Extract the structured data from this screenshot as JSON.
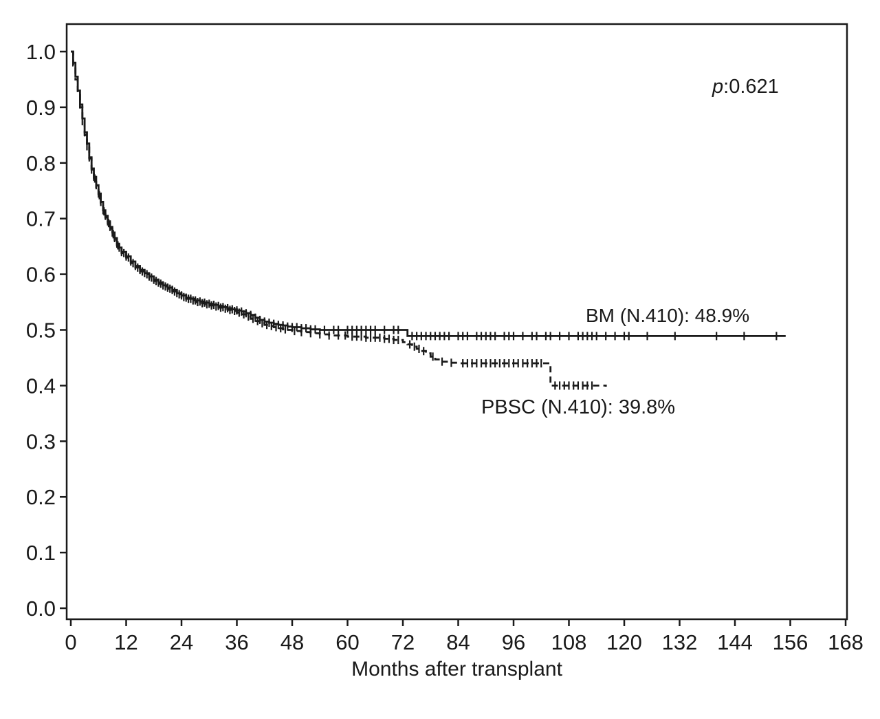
{
  "annotations": {
    "p_symbol": "p",
    "p_value": ":0.621",
    "bm_label": "BM (N.410): 48.9%",
    "pbsc_label": "PBSC (N.410): 39.8%"
  },
  "chart_data": {
    "type": "line",
    "subtype": "kaplan-meier-step",
    "title": "",
    "xlabel": "Months after transplant",
    "ylabel": "",
    "xlim": [
      0,
      168
    ],
    "ylim": [
      0.0,
      1.0
    ],
    "grid": false,
    "legend_position": "inline-labels",
    "ink_color": "#1a1a1a",
    "x_ticks": [
      0,
      12,
      24,
      36,
      48,
      60,
      72,
      84,
      96,
      108,
      120,
      132,
      144,
      156,
      168
    ],
    "x_tick_labels": [
      "0",
      "12",
      "24",
      "36",
      "48",
      "60",
      "72",
      "84",
      "96",
      "108",
      "120",
      "132",
      "144",
      "156",
      "168"
    ],
    "y_ticks": [
      0.0,
      0.1,
      0.2,
      0.3,
      0.4,
      0.5,
      0.6,
      0.7,
      0.8,
      0.9,
      1.0
    ],
    "y_tick_labels": [
      "0.0",
      "0.1",
      "0.2",
      "0.3",
      "0.4",
      "0.5",
      "0.6",
      "0.7",
      "0.8",
      "0.9",
      "1.0"
    ],
    "p_value": 0.621,
    "series": [
      {
        "name": "BM",
        "n": 410,
        "final_survival": 0.489,
        "final_pct": "48.9%",
        "line_style": "solid",
        "color": "#1a1a1a",
        "points": [
          [
            0,
            1.0
          ],
          [
            0.5,
            0.98
          ],
          [
            1,
            0.955
          ],
          [
            1.5,
            0.93
          ],
          [
            2,
            0.905
          ],
          [
            2.5,
            0.88
          ],
          [
            3,
            0.855
          ],
          [
            3.5,
            0.835
          ],
          [
            4,
            0.81
          ],
          [
            4.5,
            0.79
          ],
          [
            5,
            0.775
          ],
          [
            5.5,
            0.76
          ],
          [
            6,
            0.745
          ],
          [
            6.5,
            0.73
          ],
          [
            7,
            0.715
          ],
          [
            7.5,
            0.705
          ],
          [
            8,
            0.695
          ],
          [
            8.5,
            0.685
          ],
          [
            9,
            0.675
          ],
          [
            9.5,
            0.665
          ],
          [
            10,
            0.655
          ],
          [
            10.5,
            0.648
          ],
          [
            11,
            0.64
          ],
          [
            12,
            0.632
          ],
          [
            13,
            0.623
          ],
          [
            14,
            0.615
          ],
          [
            15,
            0.608
          ],
          [
            16,
            0.602
          ],
          [
            17,
            0.596
          ],
          [
            18,
            0.59
          ],
          [
            19,
            0.585
          ],
          [
            20,
            0.58
          ],
          [
            21,
            0.576
          ],
          [
            22,
            0.572
          ],
          [
            23,
            0.566
          ],
          [
            24,
            0.562
          ],
          [
            25,
            0.558
          ],
          [
            26,
            0.556
          ],
          [
            27,
            0.553
          ],
          [
            28,
            0.551
          ],
          [
            29,
            0.549
          ],
          [
            30,
            0.547
          ],
          [
            31,
            0.545
          ],
          [
            32,
            0.543
          ],
          [
            33,
            0.541
          ],
          [
            34,
            0.539
          ],
          [
            35,
            0.537
          ],
          [
            36,
            0.535
          ],
          [
            37,
            0.533
          ],
          [
            38,
            0.53
          ],
          [
            39,
            0.527
          ],
          [
            40,
            0.522
          ],
          [
            41,
            0.518
          ],
          [
            42,
            0.515
          ],
          [
            43,
            0.513
          ],
          [
            44,
            0.511
          ],
          [
            45,
            0.509
          ],
          [
            46,
            0.508
          ],
          [
            47,
            0.506
          ],
          [
            48,
            0.505
          ],
          [
            50,
            0.503
          ],
          [
            52,
            0.501
          ],
          [
            54,
            0.5
          ],
          [
            72,
            0.5
          ],
          [
            73,
            0.489
          ],
          [
            155,
            0.489
          ]
        ],
        "censor_times": [
          2,
          3,
          4,
          5,
          5.5,
          6,
          6.5,
          7,
          7.5,
          8,
          8.5,
          9,
          9.5,
          10,
          10.5,
          11,
          12,
          13,
          14,
          15,
          16,
          17,
          18,
          19,
          20,
          21,
          22,
          23,
          24,
          25,
          26,
          27,
          28,
          29,
          30,
          31,
          32,
          33,
          34,
          35,
          36,
          37,
          38,
          39,
          40,
          41,
          42,
          43,
          44,
          45,
          46,
          47,
          48,
          49,
          50,
          51,
          52,
          53,
          55,
          57,
          58,
          60,
          61,
          62,
          63,
          64,
          65,
          66,
          68,
          70,
          71,
          74,
          75,
          76,
          77,
          78,
          79,
          80,
          81,
          82,
          84,
          85,
          86,
          88,
          89,
          90,
          91,
          92,
          94,
          95,
          96,
          98,
          100,
          101,
          103,
          104,
          106,
          108,
          110,
          111,
          112,
          113,
          114,
          116,
          118,
          120,
          121,
          125,
          131,
          140,
          146,
          153
        ]
      },
      {
        "name": "PBSC",
        "n": 410,
        "final_survival": 0.398,
        "final_pct": "39.8%",
        "line_style": "dashed",
        "color": "#1a1a1a",
        "points": [
          [
            0,
            1.0
          ],
          [
            0.5,
            0.975
          ],
          [
            1,
            0.95
          ],
          [
            1.5,
            0.925
          ],
          [
            2,
            0.9
          ],
          [
            2.5,
            0.875
          ],
          [
            3,
            0.85
          ],
          [
            3.5,
            0.83
          ],
          [
            4,
            0.808
          ],
          [
            4.5,
            0.788
          ],
          [
            5,
            0.772
          ],
          [
            5.5,
            0.757
          ],
          [
            6,
            0.742
          ],
          [
            6.5,
            0.728
          ],
          [
            7,
            0.713
          ],
          [
            7.5,
            0.702
          ],
          [
            8,
            0.692
          ],
          [
            8.5,
            0.682
          ],
          [
            9,
            0.672
          ],
          [
            9.5,
            0.662
          ],
          [
            10,
            0.652
          ],
          [
            10.5,
            0.645
          ],
          [
            11,
            0.638
          ],
          [
            12,
            0.63
          ],
          [
            13,
            0.62
          ],
          [
            14,
            0.612
          ],
          [
            15,
            0.605
          ],
          [
            16,
            0.6
          ],
          [
            17,
            0.594
          ],
          [
            18,
            0.588
          ],
          [
            19,
            0.583
          ],
          [
            20,
            0.578
          ],
          [
            21,
            0.574
          ],
          [
            22,
            0.569
          ],
          [
            23,
            0.564
          ],
          [
            24,
            0.559
          ],
          [
            25,
            0.556
          ],
          [
            26,
            0.553
          ],
          [
            27,
            0.55
          ],
          [
            28,
            0.548
          ],
          [
            29,
            0.546
          ],
          [
            30,
            0.544
          ],
          [
            31,
            0.542
          ],
          [
            32,
            0.54
          ],
          [
            33,
            0.538
          ],
          [
            34,
            0.536
          ],
          [
            35,
            0.534
          ],
          [
            36,
            0.531
          ],
          [
            37,
            0.528
          ],
          [
            38,
            0.524
          ],
          [
            39,
            0.52
          ],
          [
            40,
            0.516
          ],
          [
            41,
            0.512
          ],
          [
            42,
            0.509
          ],
          [
            43,
            0.507
          ],
          [
            44,
            0.505
          ],
          [
            45,
            0.503
          ],
          [
            46,
            0.501
          ],
          [
            47,
            0.5
          ],
          [
            48,
            0.498
          ],
          [
            50,
            0.496
          ],
          [
            52,
            0.494
          ],
          [
            54,
            0.492
          ],
          [
            56,
            0.49
          ],
          [
            60,
            0.488
          ],
          [
            64,
            0.486
          ],
          [
            68,
            0.484
          ],
          [
            70,
            0.482
          ],
          [
            72,
            0.478
          ],
          [
            73,
            0.474
          ],
          [
            74,
            0.47
          ],
          [
            75,
            0.466
          ],
          [
            76,
            0.462
          ],
          [
            77,
            0.458
          ],
          [
            78,
            0.452
          ],
          [
            79,
            0.447
          ],
          [
            80,
            0.443
          ],
          [
            82,
            0.441
          ],
          [
            84,
            0.44
          ],
          [
            103,
            0.44
          ],
          [
            104,
            0.4
          ],
          [
            116,
            0.398
          ]
        ],
        "censor_times": [
          2.5,
          3.5,
          4.5,
          5.2,
          6.2,
          7.2,
          8.2,
          9.2,
          10.2,
          11.5,
          12.5,
          13.5,
          14.5,
          15.5,
          16.5,
          17.5,
          18.5,
          19.5,
          20.5,
          21.5,
          22.5,
          23.5,
          24.5,
          25.5,
          26.5,
          27.5,
          28.5,
          29.5,
          30.5,
          31.5,
          32.5,
          33.5,
          34.5,
          35.5,
          36.5,
          37.5,
          38.5,
          39.5,
          40.5,
          41.5,
          42.5,
          43.5,
          44.5,
          45.5,
          46.5,
          48.5,
          50,
          52,
          54,
          56,
          58,
          59.5,
          61,
          62,
          63,
          64,
          65,
          66,
          67,
          68,
          69,
          70,
          71,
          73.5,
          74.5,
          75.5,
          76.5,
          78.5,
          80.5,
          82.5,
          85,
          86,
          87,
          88,
          89,
          90,
          91,
          92,
          93,
          94,
          95,
          96,
          97,
          98,
          99,
          100,
          101,
          102,
          105,
          106,
          107,
          108,
          109,
          110,
          111,
          112,
          113
        ]
      }
    ]
  }
}
